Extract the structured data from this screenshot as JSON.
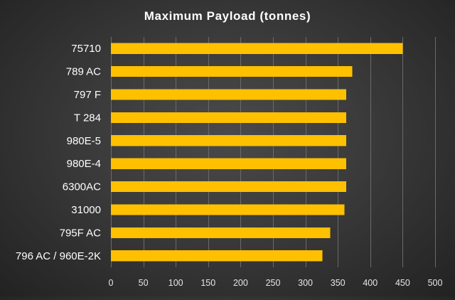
{
  "chart_data": {
    "type": "bar",
    "orientation": "horizontal",
    "title": "Maximum  Payload  (tonnes)",
    "xlabel": "",
    "ylabel": "",
    "categories": [
      "75710",
      "789 AC",
      "797 F",
      "T 284",
      "980E-5",
      "980E-4",
      "6300AC",
      "31000",
      "795F AC",
      "796 AC / 960E-2K"
    ],
    "values": [
      450,
      372,
      363,
      363,
      363,
      363,
      363,
      360,
      338,
      326
    ],
    "xlim": [
      0,
      500
    ],
    "xticks": [
      0,
      50,
      100,
      150,
      200,
      250,
      300,
      350,
      400,
      450,
      500
    ],
    "grid": "vertical",
    "legend": "none",
    "colors": {
      "bar": "#FFC000",
      "grid": "#6a6a6a",
      "text": "#ffffff"
    }
  }
}
